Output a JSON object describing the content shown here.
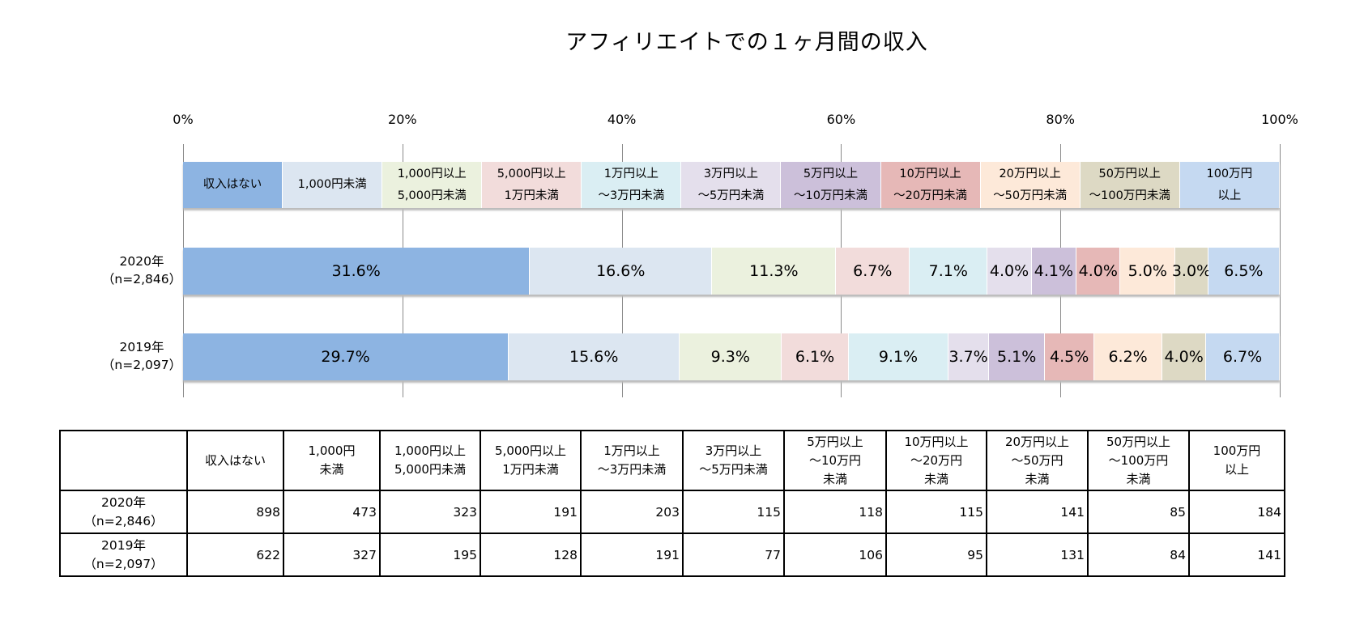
{
  "chart_data": {
    "type": "bar",
    "orientation": "horizontal-stacked-100",
    "title": "アフィリエイトでの１ヶ月間の収入",
    "xlim": [
      0,
      100
    ],
    "x_ticks": [
      "0%",
      "20%",
      "40%",
      "60%",
      "80%",
      "100%"
    ],
    "grid": true,
    "legend_position": "top",
    "categories": [
      "収入はない",
      "1,000円未満",
      "1,000円以上\n5,000円未満",
      "5,000円以上\n1万円未満",
      "1万円以上\n～3万円未満",
      "3万円以上\n～5万円未満",
      "5万円以上\n～10万円未満",
      "10万円以上\n～20万円未満",
      "20万円以上\n～50万円未満",
      "50万円以上\n～100万円未満",
      "100万円\n以上"
    ],
    "colors": [
      "#8db4e2",
      "#dce6f1",
      "#ebf1de",
      "#f2dcdb",
      "#daeef3",
      "#e4dfec",
      "#ccc0da",
      "#e6b8b7",
      "#fde9d9",
      "#ddd9c4",
      "#c5d9f1"
    ],
    "series": [
      {
        "name": "2020年\n（n=2,846）",
        "values": [
          31.6,
          16.6,
          11.3,
          6.7,
          7.1,
          4.0,
          4.1,
          4.0,
          5.0,
          3.0,
          6.5
        ],
        "labels": [
          "31.6%",
          "16.6%",
          "11.3%",
          "6.7%",
          "7.1%",
          "4.0%",
          "4.1%",
          "4.0%",
          "5.0%",
          "3.0%",
          "6.5%"
        ]
      },
      {
        "name": "2019年\n（n=2,097）",
        "values": [
          29.7,
          15.6,
          9.3,
          6.1,
          9.1,
          3.7,
          5.1,
          4.5,
          6.2,
          4.0,
          6.7
        ],
        "labels": [
          "29.7%",
          "15.6%",
          "9.3%",
          "6.1%",
          "9.1%",
          "3.7%",
          "5.1%",
          "4.5%",
          "6.2%",
          "4.0%",
          "6.7%"
        ]
      }
    ]
  },
  "table": {
    "headers": [
      "",
      "収入はない",
      "1,000円\n未満",
      "1,000円以上\n5,000円未満",
      "5,000円以上\n1万円未満",
      "1万円以上\n～3万円未満",
      "3万円以上\n～5万円未満",
      "5万円以上\n～10万円\n未満",
      "10万円以上\n～20万円\n未満",
      "20万円以上\n～50万円\n未満",
      "50万円以上\n～100万円\n未満",
      "100万円\n以上"
    ],
    "rows": [
      {
        "label": "2020年\n（n=2,846）",
        "values": [
          "898",
          "473",
          "323",
          "191",
          "203",
          "115",
          "118",
          "115",
          "141",
          "85",
          "184"
        ]
      },
      {
        "label": "2019年\n（n=2,097）",
        "values": [
          "622",
          "327",
          "195",
          "128",
          "191",
          "77",
          "106",
          "95",
          "131",
          "84",
          "141"
        ]
      }
    ]
  }
}
